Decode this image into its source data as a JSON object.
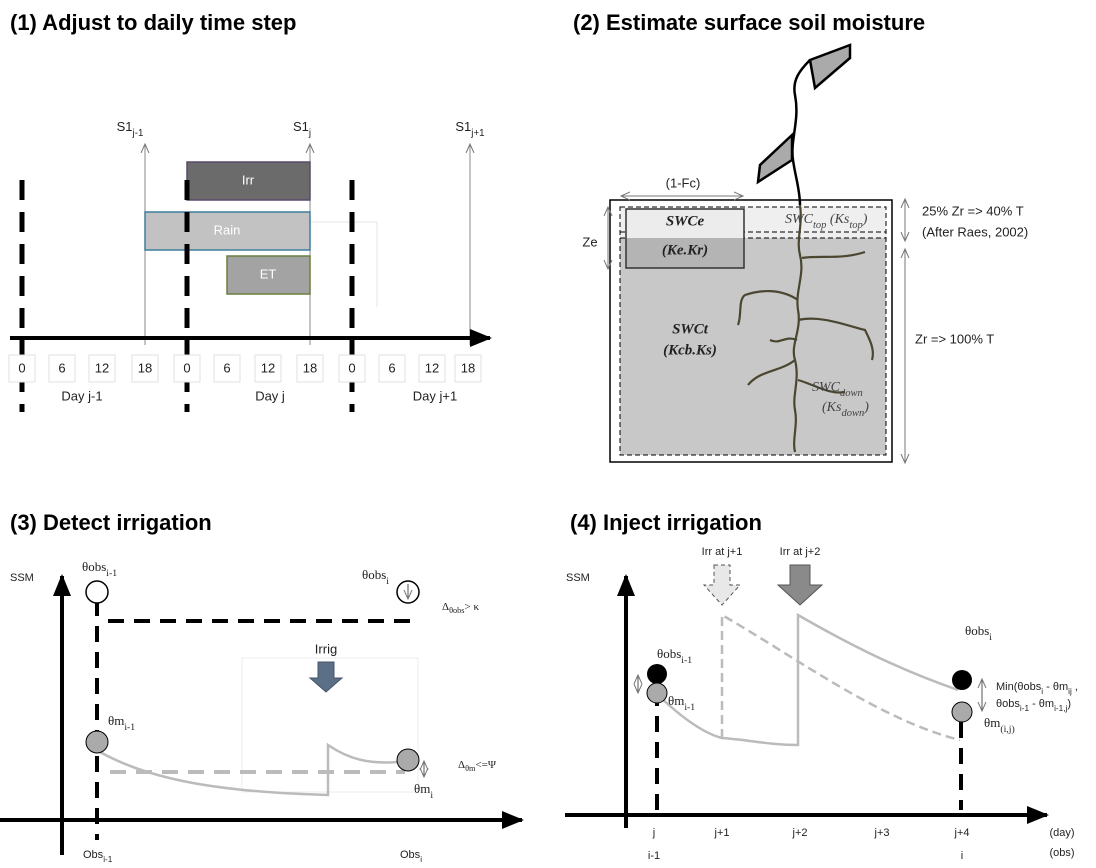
{
  "panel1": {
    "title": "(1) Adjust to daily time step",
    "s1_labels": [
      [
        "S1",
        {
          "sub": "j-1"
        }
      ],
      [
        "S1",
        {
          "sub": "j"
        }
      ],
      [
        "S1",
        {
          "sub": "j+1"
        }
      ]
    ],
    "bars": [
      "Irr",
      "Rain",
      "ET"
    ],
    "hours": [
      "0",
      "6",
      "12",
      "18",
      "0",
      "6",
      "12",
      "18",
      "0",
      "6",
      "12",
      "18"
    ],
    "days": [
      "Day j-1",
      "Day j",
      "Day j+1"
    ]
  },
  "panel2": {
    "title": "(2) Estimate surface soil moisture",
    "fc": "(1-Fc)",
    "ze": "Ze",
    "swce": "SWCe",
    "kekr": "(Ke.Kr)",
    "swc_top": [
      "SWC",
      {
        "sub": "top"
      },
      " (Ks",
      {
        "sub": "top"
      },
      ")"
    ],
    "top_zone": "25% Zr => 40% T",
    "ref": "(After Raes, 2002)",
    "swct": "SWCt",
    "kcbks": "(Kcb.Ks)",
    "root_zone": "Zr => 100% T",
    "swc_down": [
      "SWC",
      {
        "sub": "down"
      }
    ],
    "ks_down": [
      "(Ks",
      {
        "sub": "down"
      },
      ")"
    ]
  },
  "panel3": {
    "title": "(3) Detect irrigation",
    "y_label": "SSM",
    "obs_prev": [
      "θobs",
      {
        "sub": "i-1"
      }
    ],
    "obs_cur": [
      "θobs",
      {
        "sub": "i"
      }
    ],
    "delta_obs": [
      "Δ",
      {
        "sub": "θobs"
      },
      "> κ"
    ],
    "irrig": "Irrig",
    "m_prev": [
      "θm",
      {
        "sub": "i-1"
      }
    ],
    "m_cur": [
      "θm",
      {
        "sub": "i"
      }
    ],
    "delta_m": [
      "Δ",
      {
        "sub": "θm"
      },
      "<=Ψ"
    ],
    "x_prev": [
      "Obs",
      {
        "sub": "i-1"
      }
    ],
    "x_cur": [
      "Obs",
      {
        "sub": "i"
      }
    ]
  },
  "panel4": {
    "title": "(4) Inject irrigation",
    "y_label": "SSM",
    "irr1": "Irr at j+1",
    "irr2": "Irr at j+2",
    "obs_prev": [
      "θobs",
      {
        "sub": "i-1"
      }
    ],
    "obs_cur": [
      "θobs",
      {
        "sub": "i"
      }
    ],
    "m_prev": [
      "θm",
      {
        "sub": "i-1"
      }
    ],
    "m_cur": [
      "θm",
      {
        "sub": "(i,j)"
      }
    ],
    "min1": [
      "Min(θobs",
      {
        "sub": "i"
      },
      " - θm",
      {
        "sub": "ij"
      },
      " ,"
    ],
    "min2": [
      "θobs",
      {
        "sub": "i-1"
      },
      " - θm",
      {
        "sub": "i-1,j"
      },
      ")"
    ],
    "days": [
      "j",
      "j+1",
      "j+2",
      "j+3",
      "j+4"
    ],
    "obs": [
      "i-1",
      "i"
    ],
    "day_unit": "(day)",
    "obs_unit": "(obs)"
  }
}
